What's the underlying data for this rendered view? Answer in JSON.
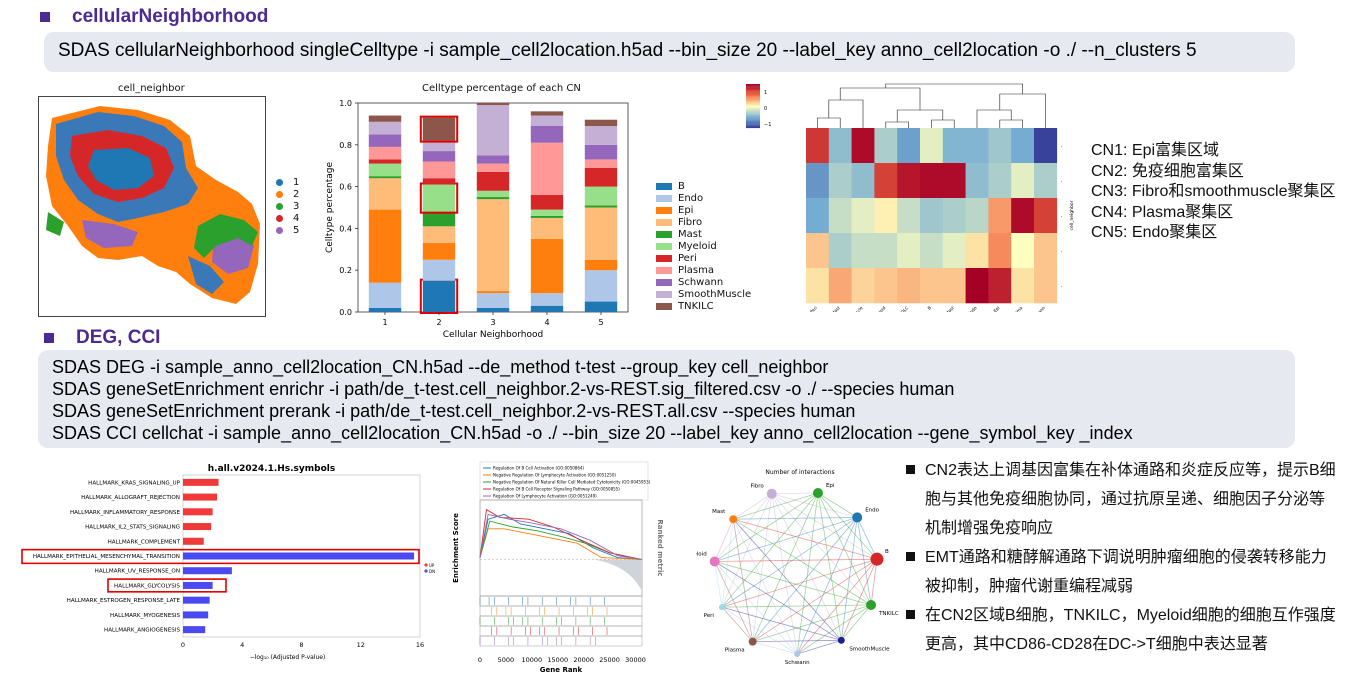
{
  "section1": {
    "title": "cellularNeighborhood",
    "command": "SDAS cellularNeighborhood singleCelltype -i sample_cell2location.h5ad --bin_size 20 --label_key anno_cell2location -o ./ --n_clusters 5"
  },
  "spatial_plot": {
    "title": "cell_neighbor",
    "legend": [
      "1",
      "2",
      "3",
      "4",
      "5"
    ],
    "colors": [
      "#1f77b4",
      "#ff7f0e",
      "#2ca02c",
      "#d62728",
      "#9467bd"
    ]
  },
  "chart_data": {
    "type": "bar",
    "stacked": true,
    "title": "Celltype percentage of each CN",
    "xlabel": "Cellular Neighborhood",
    "ylabel": "Celltype percentage",
    "categories": [
      "1",
      "2",
      "3",
      "4",
      "5"
    ],
    "ylim": [
      0,
      1.0
    ],
    "yticks": [
      "0.0",
      "0.2",
      "0.4",
      "0.6",
      "0.8",
      "1.0"
    ],
    "legend_position": "right",
    "series": [
      {
        "name": "B",
        "color": "#1f77b4",
        "values": [
          0.02,
          0.15,
          0.02,
          0.03,
          0.05
        ]
      },
      {
        "name": "Endo",
        "color": "#aec7e8",
        "values": [
          0.12,
          0.1,
          0.07,
          0.06,
          0.15
        ]
      },
      {
        "name": "Epi",
        "color": "#ff7f0e",
        "values": [
          0.35,
          0.08,
          0.01,
          0.26,
          0.05
        ]
      },
      {
        "name": "Fibro",
        "color": "#ffbb78",
        "values": [
          0.15,
          0.08,
          0.44,
          0.1,
          0.25
        ]
      },
      {
        "name": "Mast",
        "color": "#2ca02c",
        "values": [
          0.01,
          0.07,
          0.01,
          0.01,
          0.01
        ]
      },
      {
        "name": "Myeloid",
        "color": "#98df8a",
        "values": [
          0.06,
          0.13,
          0.03,
          0.03,
          0.09
        ]
      },
      {
        "name": "Peri",
        "color": "#d62728",
        "values": [
          0.02,
          0.03,
          0.09,
          0.07,
          0.09
        ]
      },
      {
        "name": "Plasma",
        "color": "#ff9896",
        "values": [
          0.06,
          0.08,
          0.04,
          0.25,
          0.04
        ]
      },
      {
        "name": "Schwann",
        "color": "#9467bd",
        "values": [
          0.06,
          0.05,
          0.04,
          0.08,
          0.07
        ]
      },
      {
        "name": "SmoothMuscle",
        "color": "#c5b0d5",
        "values": [
          0.06,
          0.05,
          0.24,
          0.05,
          0.09
        ]
      },
      {
        "name": "TNKILC",
        "color": "#8c564b",
        "values": [
          0.03,
          0.11,
          0.01,
          0.02,
          0.03
        ]
      }
    ],
    "highlight_boxes": [
      {
        "category": "2",
        "series": "TNKILC"
      },
      {
        "category": "2",
        "series": "Myeloid"
      },
      {
        "category": "2",
        "series": "B"
      }
    ]
  },
  "heatmap": {
    "colorbar_ticks": [
      "1",
      "0",
      "−1"
    ],
    "row_axis_label": "cell_neighbor",
    "columns": [
      "Peri",
      "Mast",
      "SmoothMuscle",
      "Myeloid",
      "TNKILC",
      "B",
      "Mast",
      "Endo",
      "Epi",
      "Plasma",
      "Schwann"
    ],
    "rows": [
      [
        0.75,
        -0.4,
        0.95,
        -0.3,
        -0.55,
        -0.1,
        -0.45,
        -0.45,
        -0.35,
        -0.5,
        -0.95
      ],
      [
        -0.6,
        -0.3,
        -0.4,
        0.7,
        0.9,
        0.95,
        0.95,
        -0.4,
        -0.3,
        -0.1,
        -0.3
      ],
      [
        -0.5,
        -0.2,
        -0.1,
        0.05,
        -0.2,
        -0.35,
        -0.3,
        -0.25,
        0.35,
        0.95,
        0.7
      ],
      [
        0.2,
        -0.3,
        -0.2,
        -0.2,
        -0.1,
        -0.2,
        -0.1,
        0.1,
        0.4,
        0.0,
        0.2
      ],
      [
        0.1,
        0.3,
        0.15,
        0.2,
        0.25,
        0.2,
        0.2,
        1.0,
        0.85,
        0.1,
        0.2
      ]
    ]
  },
  "cn_descriptions": [
    "CN1: Epi富集区域",
    "CN2: 免疫细胞富集区",
    "CN3: Fibro和smoothmuscle聚集区",
    "CN4: Plasma聚集区",
    "CN5: Endo聚集区"
  ],
  "section2": {
    "title": "DEG, CCI",
    "commands": [
      "SDAS DEG -i sample_anno_cell2location_CN.h5ad --de_method t-test --group_key cell_neighbor",
      "SDAS geneSetEnrichment enrichr -i path/de_t-test.cell_neighbor.2-vs-REST.sig_filtered.csv -o ./ --species human",
      "SDAS geneSetEnrichment prerank  -i path/de_t-test.cell_neighbor.2-vs-REST.all.csv --species human",
      "SDAS CCI cellchat -i sample_anno_cell2location_CN.h5ad -o ./ --bin_size 20 --label_key anno_cell2location --gene_symbol_key _index"
    ]
  },
  "enrich_chart": {
    "title": "h.all.v2024.1.Hs.symbols",
    "xlabel": "−log₁₀ (Adjusted P-value)",
    "xticks": [
      "0",
      "4",
      "8",
      "12",
      "16"
    ],
    "xlim": [
      0,
      16
    ],
    "legend": [
      "UP",
      "DN"
    ],
    "up_color": "#f03a3a",
    "dn_color": "#4a4af0",
    "terms": [
      {
        "name": "HALLMARK_KRAS_SIGNALING_UP",
        "value": 2.4,
        "dir": "up"
      },
      {
        "name": "HALLMARK_ALLOGRAFT_REJECTION",
        "value": 2.3,
        "dir": "up"
      },
      {
        "name": "HALLMARK_INFLAMMATORY_RESPONSE",
        "value": 2.0,
        "dir": "up"
      },
      {
        "name": "HALLMARK_IL2_STATS_SIGNALING",
        "value": 1.9,
        "dir": "up"
      },
      {
        "name": "HALLMARK_COMPLEMENT",
        "value": 1.4,
        "dir": "up"
      },
      {
        "name": "HALLMARK_EPITHELIAL_MESENCHYMAL_TRANSITION",
        "value": 15.6,
        "dir": "dn"
      },
      {
        "name": "HALLMARK_UV_RESPONSE_ON",
        "value": 3.3,
        "dir": "dn"
      },
      {
        "name": "HALLMARK_GLYCOLYSIS",
        "value": 2.0,
        "dir": "dn"
      },
      {
        "name": "HALLMARK_ESTROGEN_RESPONSE_LATE",
        "value": 1.8,
        "dir": "dn"
      },
      {
        "name": "HALLMARK_MYOGENESIS",
        "value": 1.7,
        "dir": "dn"
      },
      {
        "name": "HALLMARK_ANGIOGENESIS",
        "value": 1.5,
        "dir": "dn"
      }
    ]
  },
  "gsea": {
    "ylabel": "Enrichment Score",
    "ylabel2": "Ranked metric",
    "xlabel": "Gene Rank",
    "xticks": [
      "0",
      "5000",
      "10000",
      "15000",
      "20000",
      "25000",
      "30000"
    ],
    "legend": [
      {
        "name": "Regulation Of B Cell Activation (GO:0050864)",
        "color": "#1f77b4"
      },
      {
        "name": "Negative Regulation Of Lymphocyte Activation (GO:0051250)",
        "color": "#ff7f0e"
      },
      {
        "name": "Negative Regulation Of Natural Killer Cell Mediated Cytotoxicity (GO:0045953)",
        "color": "#2ca02c"
      },
      {
        "name": "Regulation Of B Cell Receptor Signaling Pathway (GO:0050855)",
        "color": "#d62728"
      },
      {
        "name": "Regulation Of Lymphocyte Activation (GO:0051249)",
        "color": "#9467bd"
      }
    ]
  },
  "network": {
    "title": "Number of interactions",
    "nodes": [
      {
        "name": "Fibro",
        "color": "#c5b0d5"
      },
      {
        "name": "Epi",
        "color": "#2ca02c"
      },
      {
        "name": "Endo",
        "color": "#1f77b4"
      },
      {
        "name": "B",
        "color": "#d62728"
      },
      {
        "name": "TNKILC",
        "color": "#2ca02c"
      },
      {
        "name": "SmoothMuscle",
        "color": "#1f1f8f"
      },
      {
        "name": "Schwann",
        "color": "#aec7e8"
      },
      {
        "name": "Plasma",
        "color": "#8c564b"
      },
      {
        "name": "Peri",
        "color": "#9edae5"
      },
      {
        "name": "Myeloid",
        "color": "#e377c2"
      },
      {
        "name": "Mast",
        "color": "#ff7f0e"
      }
    ]
  },
  "bullets": [
    "CN2表达上调基因富集在补体通路和炎症反应等，提示B细胞与其他免疫细胞协同，通过抗原呈递、细胞因子分泌等机制增强免疫响应",
    "EMT通路和糖酵解通路下调说明肿瘤细胞的侵袭转移能力被抑制，肿瘤代谢重编程减弱",
    "在CN2区域B细胞，TNKILC，Myeloid细胞的细胞互作强度更高，其中CD86-CD28在DC->T细胞中表达显著"
  ]
}
